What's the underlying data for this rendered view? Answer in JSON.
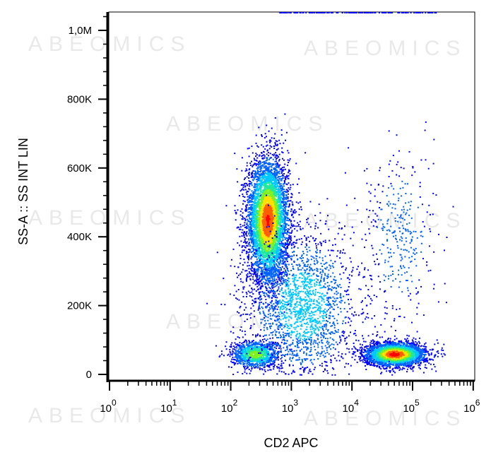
{
  "watermark_text": "ABEOMICS",
  "chart_data": {
    "type": "scatter",
    "title": "",
    "xlabel": "CD2 APC",
    "ylabel": "SS-A :: SS INT LIN",
    "x_scale": "log",
    "xlim": [
      1,
      1000000
    ],
    "ylim": [
      0,
      1050000
    ],
    "x_ticks": [
      {
        "value": 1,
        "base": "10",
        "exp": "0"
      },
      {
        "value": 10,
        "base": "10",
        "exp": "1"
      },
      {
        "value": 100,
        "base": "10",
        "exp": "2"
      },
      {
        "value": 1000,
        "base": "10",
        "exp": "3"
      },
      {
        "value": 10000,
        "base": "10",
        "exp": "4"
      },
      {
        "value": 100000,
        "base": "10",
        "exp": "5"
      },
      {
        "value": 1000000,
        "base": "10",
        "exp": "6"
      }
    ],
    "y_ticks": [
      {
        "value": 0,
        "label": "0"
      },
      {
        "value": 200000,
        "label": "200K"
      },
      {
        "value": 400000,
        "label": "400K"
      },
      {
        "value": 600000,
        "label": "600K"
      },
      {
        "value": 800000,
        "label": "800K"
      },
      {
        "value": 1000000,
        "label": "1,0M"
      }
    ],
    "grid": false,
    "legend": "none",
    "colormap": [
      "#0000ff",
      "#0060ff",
      "#00c8ff",
      "#20e8a0",
      "#80f020",
      "#ffe000",
      "#ff6000",
      "#ff0000"
    ],
    "populations": [
      {
        "name_hidden": "lymphocytes-cd2-neg",
        "x_center": 400,
        "x_sd_decades": 0.17,
        "y_center": 450000,
        "y_sd": 90000,
        "count": 5200,
        "peak_color_level": 0.95
      },
      {
        "name_hidden": "low-ss-cd2-neg",
        "x_center": 250,
        "x_sd_decades": 0.2,
        "y_center": 60000,
        "y_sd": 20000,
        "count": 1100,
        "peak_color_level": 0.6
      },
      {
        "name_hidden": "cd2-pos-cells",
        "x_center": 50000,
        "x_sd_decades": 0.25,
        "y_center": 60000,
        "y_sd": 17000,
        "count": 3000,
        "peak_color_level": 1.0
      },
      {
        "name_hidden": "cd2-pos-high-ss",
        "x_center": 60000,
        "x_sd_decades": 0.3,
        "y_center": 400000,
        "y_sd": 130000,
        "count": 350,
        "peak_color_level": 0.2
      },
      {
        "name_hidden": "streak",
        "x_center": 1500,
        "x_sd_decades": 0.45,
        "y_center": 200000,
        "y_sd": 110000,
        "count": 2000,
        "peak_color_level": 0.35
      }
    ]
  }
}
